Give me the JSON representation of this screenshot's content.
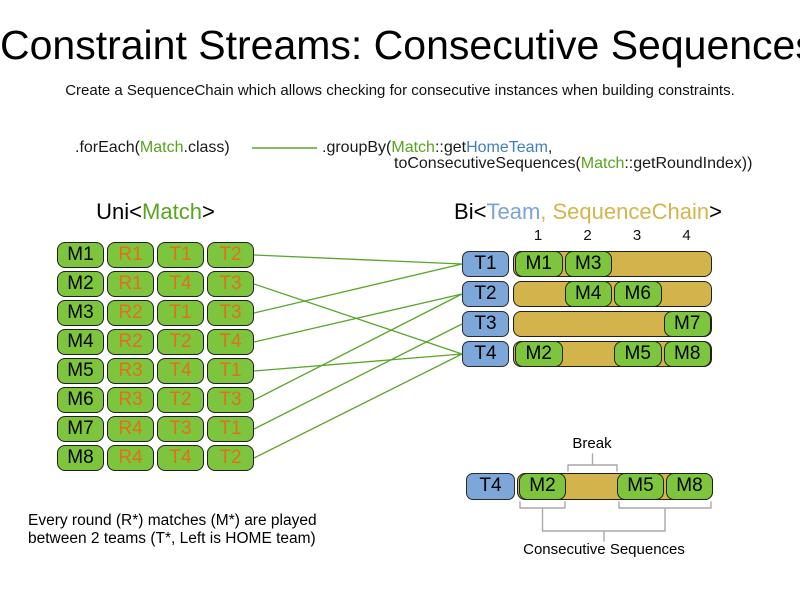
{
  "title": "Constraint Streams: Consecutive Sequences",
  "subtitle": "Create a SequenceChain which allows checking for consecutive instances when building constraints.",
  "code": {
    "foreach_pre": ".forEach(",
    "foreach_class": "Match",
    "foreach_post": ".class)",
    "groupby_pre": ".groupBy(",
    "groupby_class": "Match",
    "groupby_mid": "::get",
    "groupby_ref": "HomeTeam",
    "groupby_comma": ",",
    "line2_pre": "toConsecutiveSequences(",
    "line2_class": "Match",
    "line2_post": "::getRoundIndex))"
  },
  "uni_header": {
    "pre": "Uni<",
    "type": "Match",
    "post": ">"
  },
  "bi_header": {
    "pre": "Bi<",
    "team": "Team",
    "sep": ", ",
    "chain": "SequenceChain",
    "post": ">"
  },
  "left_table": {
    "rows": [
      [
        "M1",
        "R1",
        "T1",
        "T2"
      ],
      [
        "M2",
        "R1",
        "T4",
        "T3"
      ],
      [
        "M3",
        "R2",
        "T1",
        "T3"
      ],
      [
        "M4",
        "R2",
        "T2",
        "T4"
      ],
      [
        "M5",
        "R3",
        "T4",
        "T1"
      ],
      [
        "M6",
        "R3",
        "T2",
        "T3"
      ],
      [
        "M7",
        "R4",
        "T3",
        "T1"
      ],
      [
        "M8",
        "R4",
        "T4",
        "T2"
      ]
    ]
  },
  "right_grid": {
    "column_labels": [
      "1",
      "2",
      "3",
      "4"
    ],
    "rows": [
      {
        "team": "T1",
        "cells": [
          {
            "col": 1,
            "label": "M1"
          },
          {
            "col": 2,
            "label": "M3"
          }
        ]
      },
      {
        "team": "T2",
        "cells": [
          {
            "col": 2,
            "label": "M4"
          },
          {
            "col": 3,
            "label": "M6"
          }
        ]
      },
      {
        "team": "T3",
        "cells": [
          {
            "col": 4,
            "label": "M7"
          }
        ]
      },
      {
        "team": "T4",
        "cells": [
          {
            "col": 1,
            "label": "M2"
          },
          {
            "col": 3,
            "label": "M5"
          },
          {
            "col": 4,
            "label": "M8"
          }
        ]
      }
    ]
  },
  "connections": [
    {
      "match": "M1",
      "team": "T1"
    },
    {
      "match": "M2",
      "team": "T4"
    },
    {
      "match": "M3",
      "team": "T1"
    },
    {
      "match": "M4",
      "team": "T2"
    },
    {
      "match": "M5",
      "team": "T4"
    },
    {
      "match": "M6",
      "team": "T2"
    },
    {
      "match": "M7",
      "team": "T3"
    },
    {
      "match": "M8",
      "team": "T4"
    }
  ],
  "annotation": {
    "break_label": "Break",
    "sequences_label": "Consecutive Sequences",
    "team": "T4",
    "cells": [
      {
        "col": 1,
        "label": "M2"
      },
      {
        "col": 3,
        "label": "M5"
      },
      {
        "col": 4,
        "label": "M8"
      }
    ]
  },
  "footnote": {
    "line1": "Every round (R*) matches (M*) are played",
    "line2": "between 2 teams (T*, Left is HOME team)"
  },
  "colors": {
    "green_fill": "#7CC53C",
    "blue_fill": "#7DA7D8",
    "tan_fill": "#D2B34C",
    "code_green": "#58A41C",
    "code_blue": "#3F7EC1",
    "header_team_blue": "#7AA4D4",
    "header_chain_tan": "#D4B44C",
    "orange_text": "#E0701E",
    "connector_green": "#59A52B",
    "bracket_gray": "#A8A8A8"
  }
}
